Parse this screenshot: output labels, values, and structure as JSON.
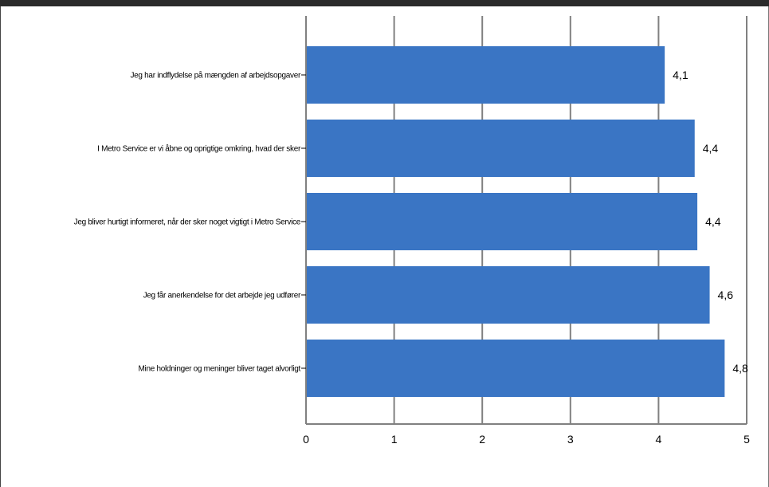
{
  "colors": {
    "bar": "#3a75c4",
    "grid": "#808080",
    "top_bar": "#2b2b2b"
  },
  "chart_data": {
    "type": "bar",
    "orientation": "horizontal",
    "categories": [
      "Jeg har indflydelse på mængden af arbejdsopgaver",
      "I Metro Service er vi åbne og oprigtige omkring, hvad der sker",
      "Jeg bliver hurtigt informeret, når der sker noget vigtigt i Metro Service",
      "Jeg får anerkendelse for det arbejde jeg udfører",
      "Mine holdninger og meninger bliver taget alvorligt"
    ],
    "values": [
      4.07,
      4.41,
      4.44,
      4.58,
      4.75
    ],
    "data_labels": [
      "4,1",
      "4,4",
      "4,4",
      "4,6",
      "4,8"
    ],
    "xlim": [
      0,
      5
    ],
    "x_ticks": [
      0,
      1,
      2,
      3,
      4,
      5
    ],
    "x_tick_labels": [
      "0",
      "1",
      "2",
      "3",
      "4",
      "5"
    ],
    "grid": true,
    "legend": "none",
    "title": "",
    "xlabel": "",
    "ylabel": ""
  }
}
